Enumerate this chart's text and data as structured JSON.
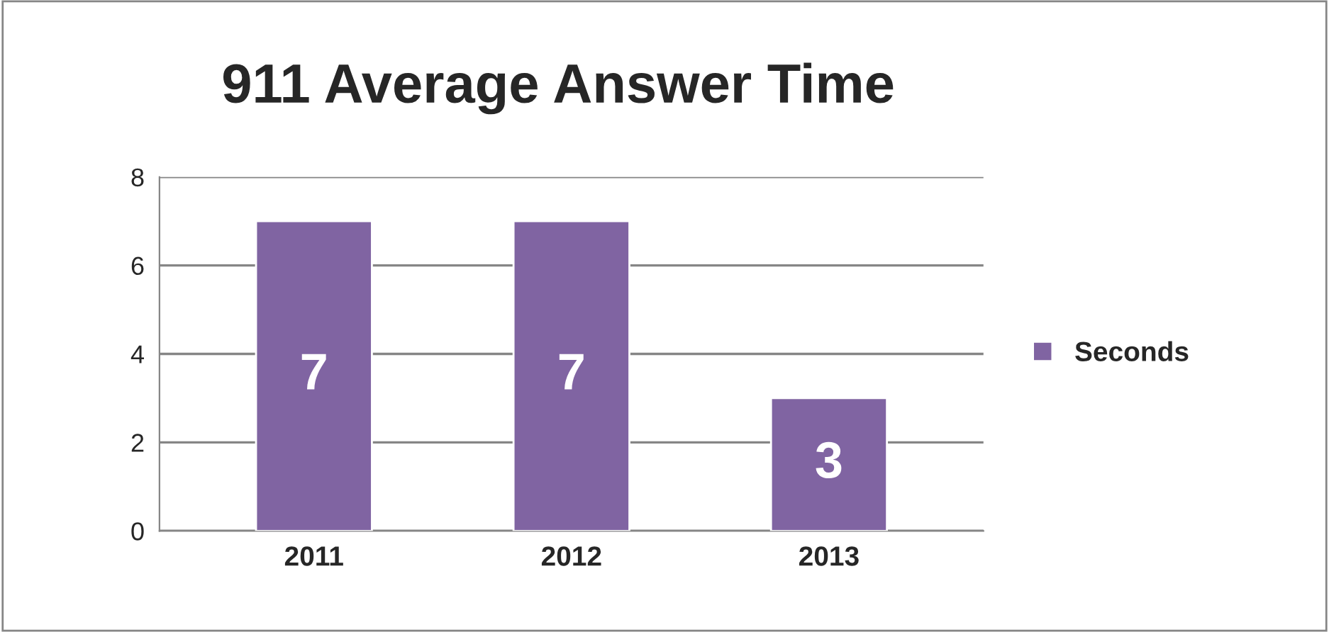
{
  "chart_data": {
    "type": "bar",
    "title": "911 Average Answer Time",
    "categories": [
      "2011",
      "2012",
      "2013"
    ],
    "series": [
      {
        "name": "Seconds",
        "color": "#8064a2",
        "values": [
          7,
          7,
          3
        ]
      }
    ],
    "ylim": [
      0,
      8
    ],
    "yticks": [
      0,
      2,
      4,
      6,
      8
    ],
    "grid": "y",
    "legend": "right",
    "data_labels": true
  }
}
